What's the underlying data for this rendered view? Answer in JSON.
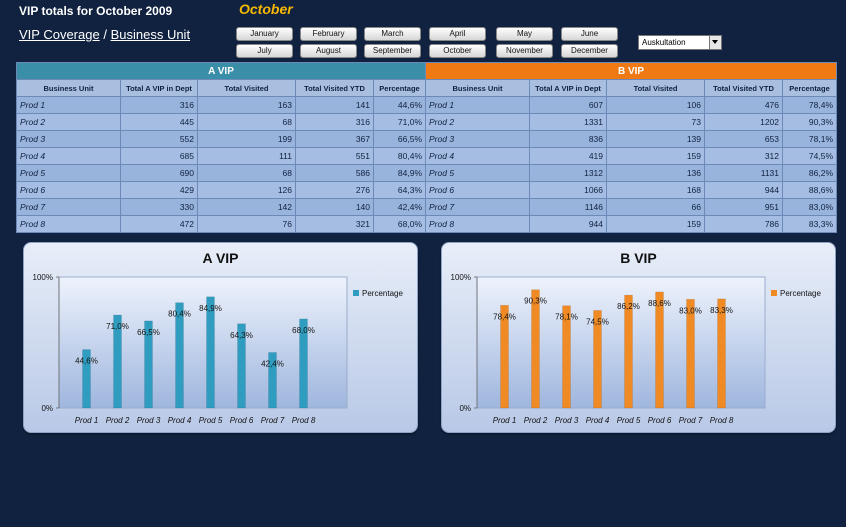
{
  "header": {
    "title": "VIP totals for October 2009",
    "selected_month": "October",
    "nav_coverage": "VIP Coverage",
    "nav_separator": "/",
    "nav_business_unit": "Business Unit"
  },
  "months": [
    "January",
    "February",
    "March",
    "April",
    "May",
    "June",
    "July",
    "August",
    "September",
    "October",
    "November",
    "December"
  ],
  "dropdown": {
    "selected": "Auskultation"
  },
  "table": {
    "group_a": "A VIP",
    "group_b": "B VIP",
    "columns_a": [
      "Business Unit",
      "Total A VIP in Dept",
      "Total Visited",
      "Total Visited YTD",
      "Percentage"
    ],
    "columns_b": [
      "Business Unit",
      "Total A VIP in Dept",
      "Total Visited",
      "Total Visited YTD",
      "Percentage"
    ],
    "rows_a": [
      [
        "Prod 1",
        "316",
        "163",
        "141",
        "44,6%"
      ],
      [
        "Prod 2",
        "445",
        "68",
        "316",
        "71,0%"
      ],
      [
        "Prod 3",
        "552",
        "199",
        "367",
        "66,5%"
      ],
      [
        "Prod 4",
        "685",
        "111",
        "551",
        "80,4%"
      ],
      [
        "Prod 5",
        "690",
        "68",
        "586",
        "84,9%"
      ],
      [
        "Prod 6",
        "429",
        "126",
        "276",
        "64,3%"
      ],
      [
        "Prod 7",
        "330",
        "142",
        "140",
        "42,4%"
      ],
      [
        "Prod 8",
        "472",
        "76",
        "321",
        "68,0%"
      ]
    ],
    "rows_b": [
      [
        "Prod 1",
        "607",
        "106",
        "476",
        "78,4%"
      ],
      [
        "Prod 2",
        "1331",
        "73",
        "1202",
        "90,3%"
      ],
      [
        "Prod 3",
        "836",
        "139",
        "653",
        "78,1%"
      ],
      [
        "Prod 4",
        "419",
        "159",
        "312",
        "74,5%"
      ],
      [
        "Prod 5",
        "1312",
        "136",
        "1131",
        "86,2%"
      ],
      [
        "Prod 6",
        "1066",
        "168",
        "944",
        "88,6%"
      ],
      [
        "Prod 7",
        "1146",
        "66",
        "951",
        "83,0%"
      ],
      [
        "Prod 8",
        "944",
        "159",
        "786",
        "83,3%"
      ]
    ]
  },
  "chart_data": [
    {
      "type": "bar",
      "title": "A VIP",
      "categories": [
        "Prod 1",
        "Prod 2",
        "Prod 3",
        "Prod 4",
        "Prod 5",
        "Prod 6",
        "Prod 7",
        "Prod 8"
      ],
      "series": [
        {
          "name": "Percentage",
          "values": [
            44.6,
            71.0,
            66.5,
            80.4,
            84.9,
            64.3,
            42.4,
            68.0
          ],
          "labels": [
            "44,6%",
            "71,0%",
            "66,5%",
            "80,4%",
            "84,9%",
            "64,3%",
            "42,4%",
            "68,0%"
          ],
          "color": "#2f9cc0"
        }
      ],
      "ylim": [
        0,
        100
      ],
      "ytick_labels": [
        "0%",
        "100%"
      ],
      "legend": "right"
    },
    {
      "type": "bar",
      "title": "B VIP",
      "categories": [
        "Prod 1",
        "Prod 2",
        "Prod 3",
        "Prod 4",
        "Prod 5",
        "Prod 6",
        "Prod 7",
        "Prod 8"
      ],
      "series": [
        {
          "name": "Percentage",
          "values": [
            78.4,
            90.3,
            78.1,
            74.5,
            86.2,
            88.6,
            83.0,
            83.3
          ],
          "labels": [
            "78,4%",
            "90,3%",
            "78,1%",
            "74,5%",
            "86,2%",
            "88,6%",
            "83,0%",
            "83,3%"
          ],
          "color": "#f08a24"
        }
      ],
      "ylim": [
        0,
        100
      ],
      "ytick_labels": [
        "0%",
        "100%"
      ],
      "legend": "right"
    }
  ]
}
